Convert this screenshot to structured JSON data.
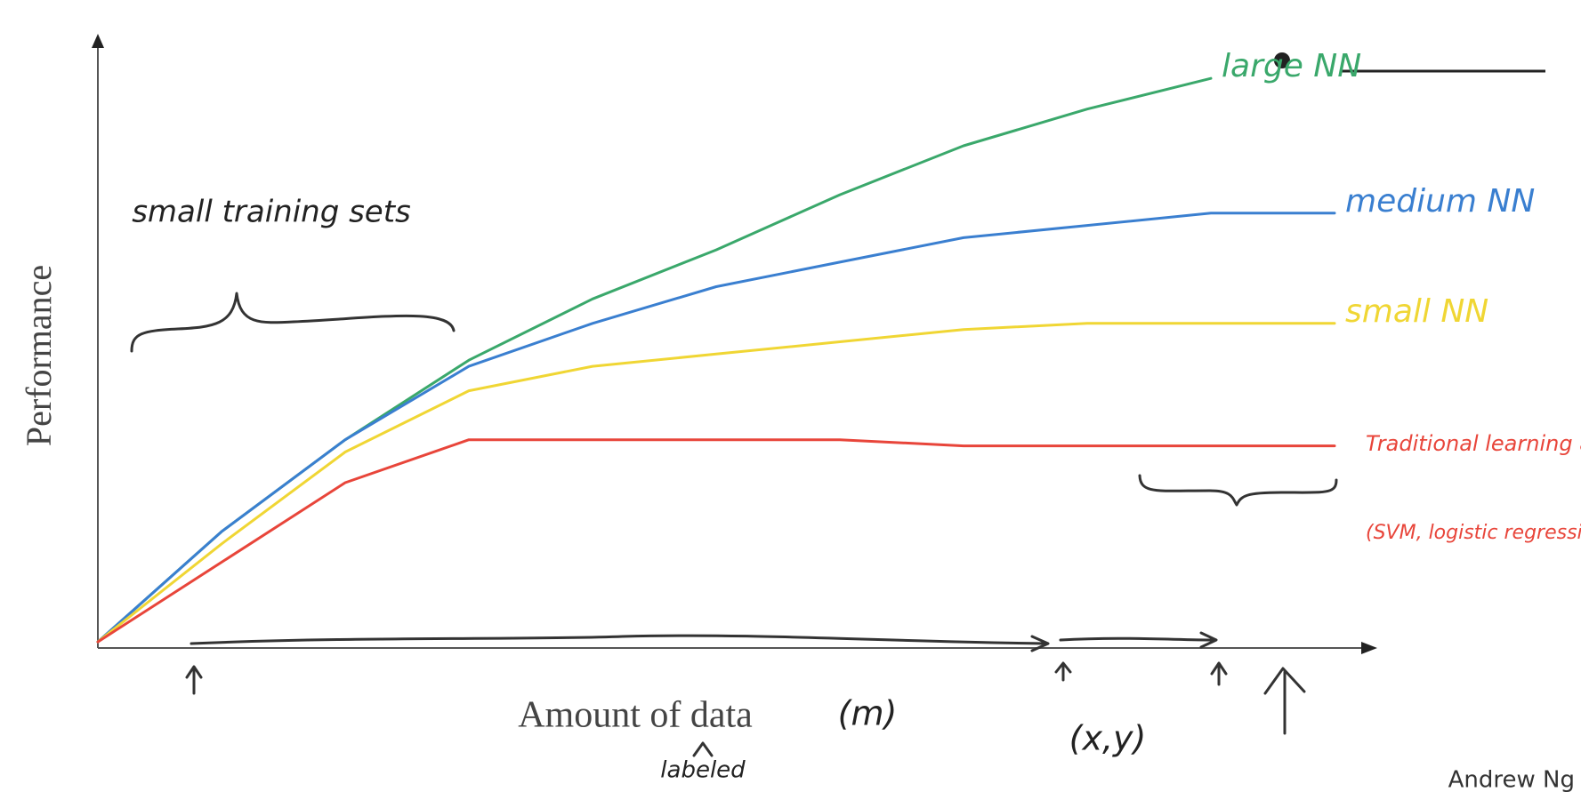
{
  "chart_data": {
    "type": "line",
    "x_label": "Amount of data",
    "y_label": "Performance",
    "x": [
      0,
      1,
      2,
      3,
      4,
      5,
      6,
      7,
      8,
      9,
      10
    ],
    "xlim": [
      0,
      10
    ],
    "ylim": [
      0,
      100
    ],
    "series": [
      {
        "name": "large NN",
        "color": "#3aa86b",
        "values": [
          1,
          19,
          34,
          47,
          57,
          65,
          74,
          82,
          88,
          93,
          null
        ]
      },
      {
        "name": "medium NN",
        "color": "#3a7fd0",
        "values": [
          1,
          19,
          34,
          46,
          53,
          59,
          63,
          67,
          69,
          71,
          71
        ]
      },
      {
        "name": "small NN",
        "color": "#f0d634",
        "values": [
          1,
          17,
          32,
          42,
          46,
          48,
          50,
          52,
          53,
          53,
          53
        ]
      },
      {
        "name": "Traditional learning algo",
        "color": "#e8453a",
        "values": [
          1,
          14,
          27,
          34,
          34,
          34,
          34,
          33,
          33,
          33,
          33
        ]
      }
    ],
    "annotations": [
      "small training sets",
      "(SVM, logistic regression,...)",
      "(m)",
      "labeled",
      "(x,y)",
      "Andrew Ng"
    ]
  }
}
